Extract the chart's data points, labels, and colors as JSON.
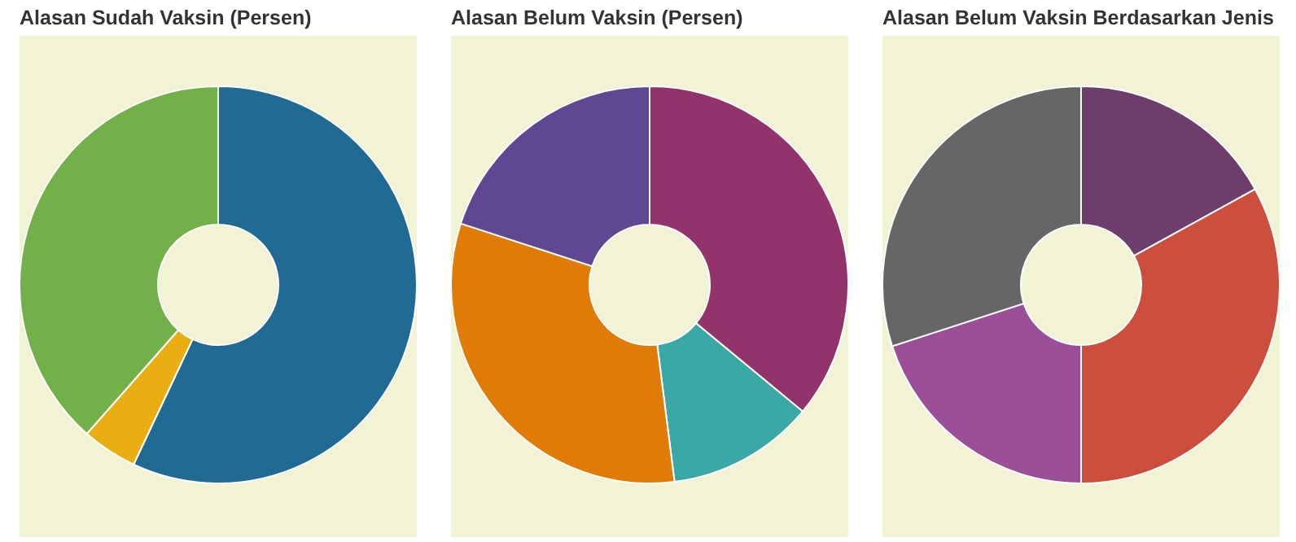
{
  "chart_data": [
    {
      "type": "donut",
      "title": "Alasan Sudah Vaksin (Persen)",
      "categories": [
        null,
        null,
        null
      ],
      "values": [
        57,
        4.5,
        38.5
      ],
      "colors": [
        "#1f6b94",
        "#e8ae12",
        "#72b04a"
      ],
      "legend": false
    },
    {
      "type": "donut",
      "title": "Alasan Belum Vaksin (Persen)",
      "categories": [
        null,
        null,
        null,
        null
      ],
      "values": [
        36,
        12,
        32,
        20
      ],
      "colors": [
        "#93336c",
        "#3aa8a4",
        "#e07b05",
        "#604792"
      ],
      "legend": false
    },
    {
      "type": "donut",
      "title": "Alasan Belum Vaksin Berdasarkan Jenis",
      "categories": [
        null,
        null,
        null,
        null
      ],
      "values": [
        17,
        33,
        20,
        30
      ],
      "colors": [
        "#6d3d6b",
        "#cc4f3d",
        "#9b4f96",
        "#666666"
      ],
      "legend": false
    }
  ]
}
